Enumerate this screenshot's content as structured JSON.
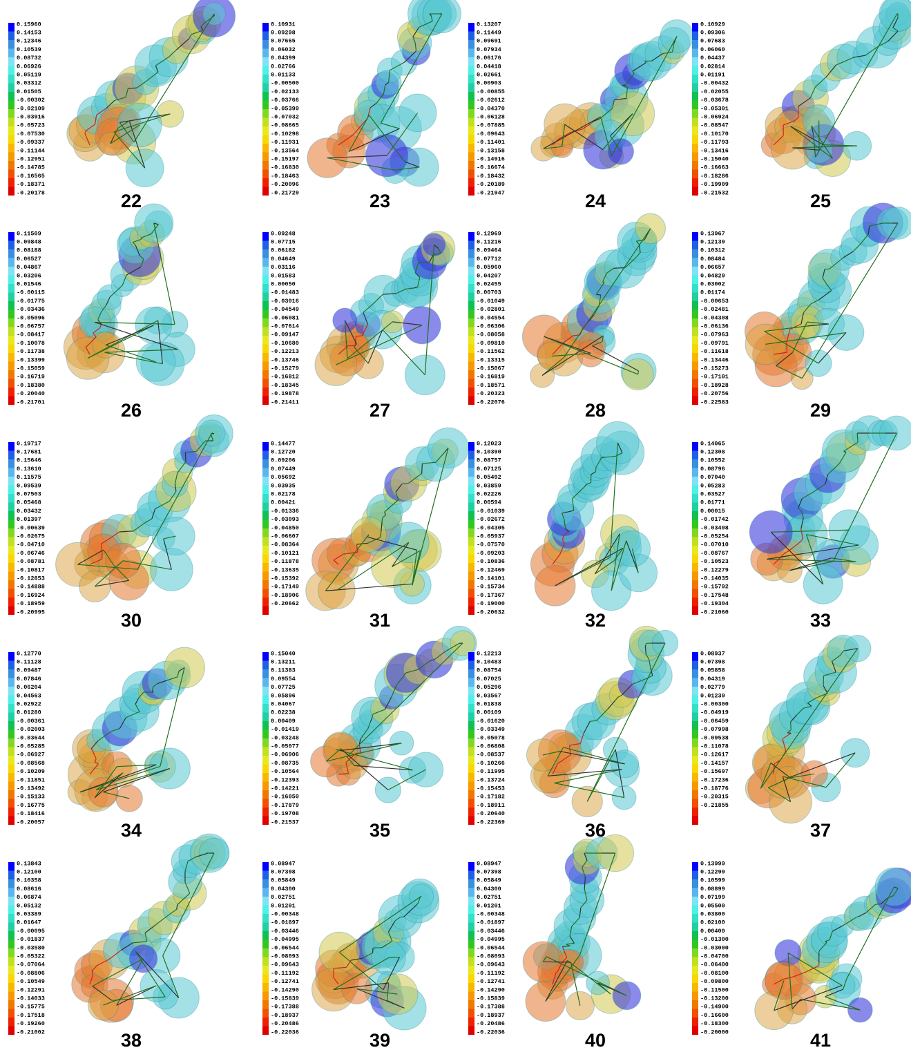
{
  "panels": [
    {
      "label": "22",
      "scale": [
        "0.15960",
        "0.14153",
        "0.12346",
        "0.10539",
        "0.08732",
        "0.06926",
        "0.05119",
        "0.03312",
        "0.01505",
        "-0.00302",
        "-0.02109",
        "-0.03916",
        "-0.05723",
        "-0.07530",
        "-0.09337",
        "-0.11144",
        "-0.12951",
        "-0.14785",
        "-0.16565",
        "-0.18371",
        "-0.20178"
      ]
    },
    {
      "label": "23",
      "scale": [
        "0.10931",
        "0.09298",
        "0.07665",
        "0.06032",
        "0.04399",
        "0.02766",
        "0.01133",
        "-0.00500",
        "-0.02133",
        "-0.03766",
        "-0.05399",
        "-0.07032",
        "-0.08665",
        "-0.10298",
        "-0.11931",
        "-0.13564",
        "-0.15197",
        "-0.16830",
        "-0.18463",
        "-0.20096",
        "-0.21729"
      ]
    },
    {
      "label": "24",
      "scale": [
        "0.13207",
        "0.11449",
        "0.09691",
        "0.07934",
        "0.06176",
        "0.04418",
        "0.02661",
        "0.00903",
        "-0.00855",
        "-0.02612",
        "-0.04370",
        "-0.06128",
        "-0.07885",
        "-0.09643",
        "-0.11401",
        "-0.13158",
        "-0.14916",
        "-0.16674",
        "-0.18432",
        "-0.20189",
        "-0.21947"
      ]
    },
    {
      "label": "25",
      "scale": [
        "0.10929",
        "0.09306",
        "0.07683",
        "0.06060",
        "0.04437",
        "0.02814",
        "0.01191",
        "-0.00432",
        "-0.02055",
        "-0.03678",
        "-0.05301",
        "-0.06924",
        "-0.08547",
        "-0.10170",
        "-0.11793",
        "-0.13416",
        "-0.15040",
        "-0.16663",
        "-0.18286",
        "-0.19909",
        "-0.21532"
      ]
    },
    {
      "label": "26",
      "scale": [
        "0.11509",
        "0.09848",
        "0.08188",
        "0.06527",
        "0.04867",
        "0.03206",
        "0.01546",
        "-0.00115",
        "-0.01775",
        "-0.03436",
        "-0.05096",
        "-0.06757",
        "-0.08417",
        "-0.10078",
        "-0.11738",
        "-0.13399",
        "-0.15059",
        "-0.16719",
        "-0.18380",
        "-0.20040",
        "-0.21701"
      ]
    },
    {
      "label": "27",
      "scale": [
        "0.09248",
        "0.07715",
        "0.06182",
        "0.04649",
        "0.03116",
        "0.01583",
        "0.00050",
        "-0.01483",
        "-0.03016",
        "-0.04549",
        "-0.06081",
        "-0.07614",
        "-0.09147",
        "-0.10680",
        "-0.12213",
        "-0.13746",
        "-0.15279",
        "-0.16812",
        "-0.18345",
        "-0.19878",
        "-0.21411"
      ]
    },
    {
      "label": "28",
      "scale": [
        "0.12969",
        "0.11216",
        "0.09464",
        "0.07712",
        "0.05960",
        "0.04207",
        "0.02455",
        "0.00703",
        "-0.01049",
        "-0.02801",
        "-0.04554",
        "-0.06306",
        "-0.08058",
        "-0.09810",
        "-0.11562",
        "-0.13315",
        "-0.15067",
        "-0.16819",
        "-0.18571",
        "-0.20323",
        "-0.22076"
      ]
    },
    {
      "label": "29",
      "scale": [
        "0.13967",
        "0.12139",
        "0.10312",
        "0.08484",
        "0.06657",
        "0.04829",
        "0.03002",
        "0.01174",
        "-0.00653",
        "-0.02481",
        "-0.04308",
        "-0.06136",
        "-0.07963",
        "-0.09791",
        "-0.11618",
        "-0.13446",
        "-0.15273",
        "-0.17101",
        "-0.18928",
        "-0.20756",
        "-0.22583"
      ]
    },
    {
      "label": "30",
      "scale": [
        "0.19717",
        "0.17681",
        "0.15646",
        "0.13610",
        "0.11575",
        "0.09539",
        "0.07503",
        "0.05468",
        "0.03432",
        "0.01397",
        "-0.00639",
        "-0.02675",
        "-0.04710",
        "-0.06746",
        "-0.08781",
        "-0.10817",
        "-0.12853",
        "-0.14888",
        "-0.16924",
        "-0.18959",
        "-0.20995"
      ]
    },
    {
      "label": "31",
      "scale": [
        "0.14477",
        "0.12720",
        "0.09206",
        "0.07449",
        "0.05692",
        "0.03935",
        "0.02178",
        "0.00421",
        "-0.01336",
        "-0.03093",
        "-0.04850",
        "-0.06607",
        "-0.08364",
        "-0.10121",
        "-0.11878",
        "-0.13635",
        "-0.15392",
        "-0.17149",
        "-0.18906",
        "-0.20662"
      ]
    },
    {
      "label": "32",
      "scale": [
        "0.12023",
        "0.10390",
        "0.08757",
        "0.07125",
        "0.05492",
        "0.03859",
        "0.02226",
        "0.00594",
        "-0.01039",
        "-0.02672",
        "-0.04305",
        "-0.05937",
        "-0.07570",
        "-0.09203",
        "-0.10836",
        "-0.12469",
        "-0.14101",
        "-0.15734",
        "-0.17367",
        "-0.19000",
        "-0.20632"
      ]
    },
    {
      "label": "33",
      "scale": [
        "0.14065",
        "0.12308",
        "0.10552",
        "0.08796",
        "0.07040",
        "0.05283",
        "0.03527",
        "0.01771",
        "0.00015",
        "-0.01742",
        "-0.03498",
        "-0.05254",
        "-0.07010",
        "-0.08767",
        "-0.10523",
        "-0.12279",
        "-0.14035",
        "-0.15792",
        "-0.17548",
        "-0.19304",
        "-0.21060"
      ]
    },
    {
      "label": "34",
      "scale": [
        "0.12770",
        "0.11128",
        "0.09487",
        "0.07846",
        "0.06204",
        "0.04563",
        "0.02922",
        "0.01280",
        "-0.00361",
        "-0.02003",
        "-0.03644",
        "-0.05285",
        "-0.06927",
        "-0.08568",
        "-0.10209",
        "-0.11851",
        "-0.13492",
        "-0.15133",
        "-0.16775",
        "-0.18416",
        "-0.20057"
      ]
    },
    {
      "label": "35",
      "scale": [
        "0.15040",
        "0.13211",
        "0.11383",
        "0.09554",
        "0.07725",
        "0.05896",
        "0.04067",
        "0.02238",
        "0.00409",
        "-0.01419",
        "-0.03248",
        "-0.05077",
        "-0.06906",
        "-0.08735",
        "-0.10564",
        "-0.12393",
        "-0.14221",
        "-0.16050",
        "-0.17879",
        "-0.19708",
        "-0.21537"
      ]
    },
    {
      "label": "36",
      "scale": [
        "0.12213",
        "0.10483",
        "0.08754",
        "0.07025",
        "0.05296",
        "0.03567",
        "0.01838",
        "0.00109",
        "-0.01620",
        "-0.03349",
        "-0.05078",
        "-0.06808",
        "-0.08537",
        "-0.10266",
        "-0.11995",
        "-0.13724",
        "-0.15453",
        "-0.17182",
        "-0.18911",
        "-0.20640",
        "-0.22369"
      ]
    },
    {
      "label": "37",
      "scale": [
        "0.08937",
        "0.07398",
        "0.05858",
        "0.04319",
        "0.02779",
        "0.01239",
        "-0.00300",
        "-0.04919",
        "-0.06459",
        "-0.07998",
        "-0.09538",
        "-0.11078",
        "-0.12617",
        "-0.14157",
        "-0.15697",
        "-0.17236",
        "-0.18776",
        "-0.20315",
        "-0.21855"
      ]
    },
    {
      "label": "38",
      "scale": [
        "0.13843",
        "0.12100",
        "0.10358",
        "0.08616",
        "0.06874",
        "0.05132",
        "0.03389",
        "0.01647",
        "-0.00095",
        "-0.01837",
        "-0.03580",
        "-0.05322",
        "-0.07064",
        "-0.08806",
        "-0.10549",
        "-0.12291",
        "-0.14033",
        "-0.15775",
        "-0.17518",
        "-0.19260",
        "-0.21002"
      ]
    },
    {
      "label": "39",
      "scale": [
        "0.08947",
        "0.07398",
        "0.05849",
        "0.04300",
        "0.02751",
        "0.01201",
        "-0.00348",
        "-0.01897",
        "-0.03446",
        "-0.04995",
        "-0.06544",
        "-0.08093",
        "-0.09643",
        "-0.11192",
        "-0.12741",
        "-0.14290",
        "-0.15839",
        "-0.17388",
        "-0.18937",
        "-0.20486",
        "-0.22036"
      ]
    },
    {
      "label": "40",
      "scale": [
        "0.08947",
        "0.07398",
        "0.05849",
        "0.04300",
        "0.02751",
        "0.01201",
        "-0.00348",
        "-0.01897",
        "-0.03446",
        "-0.04995",
        "-0.06544",
        "-0.08093",
        "-0.09643",
        "-0.11192",
        "-0.12741",
        "-0.14290",
        "-0.15839",
        "-0.17388",
        "-0.18937",
        "-0.20486",
        "-0.22036"
      ]
    },
    {
      "label": "41",
      "scale": [
        "0.13999",
        "0.12299",
        "0.10599",
        "0.08899",
        "0.07199",
        "0.05500",
        "0.03800",
        "0.02100",
        "0.00400",
        "-0.01300",
        "-0.03000",
        "-0.04700",
        "-0.06400",
        "-0.08100",
        "-0.09800",
        "-0.11500",
        "-0.13200",
        "-0.14900",
        "-0.16600",
        "-0.18300",
        "-0.20000"
      ]
    }
  ]
}
